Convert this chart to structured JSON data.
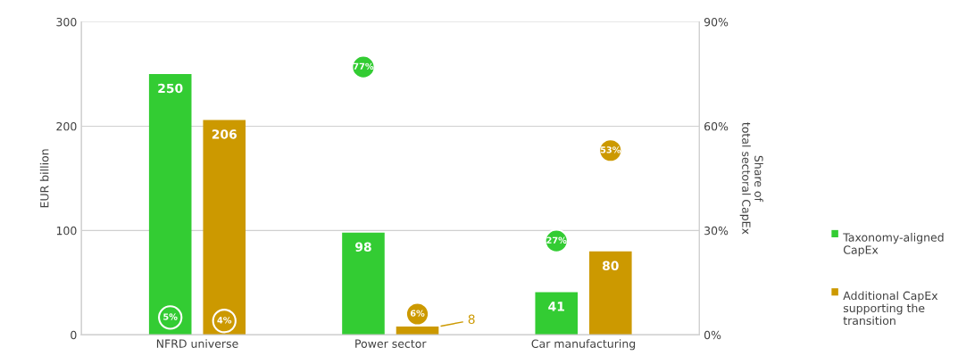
{
  "chart_data": {
    "type": "bar",
    "categories": [
      "NFRD universe",
      "Power sector",
      "Car manufacturing"
    ],
    "ylabel": "EUR billion",
    "y2label": "Share of\ntotal sectoral CapEx",
    "ylim": [
      0,
      300
    ],
    "yticks": [
      0,
      100,
      200,
      300
    ],
    "y2lim": [
      0,
      90
    ],
    "y2ticks": [
      {
        "value": 0,
        "label": "0%"
      },
      {
        "value": 30,
        "label": "30%"
      },
      {
        "value": 60,
        "label": "60%"
      },
      {
        "value": 90,
        "label": "90%"
      }
    ],
    "grid": "y",
    "legend": "right",
    "data_labels": true,
    "series": [
      {
        "name": "Taxonomy-aligned CapEx",
        "color": "#33cc33",
        "values": [
          250,
          98,
          41
        ]
      },
      {
        "name": "Additional CapEx supporting the transition",
        "color": "#cc9900",
        "values": [
          206,
          8,
          80
        ]
      },
      {
        "type": "scatter",
        "axis": "y2",
        "color": "#33cc33",
        "values": [
          5,
          77,
          27
        ],
        "value_labels": [
          "5%",
          "77%",
          "27%"
        ]
      },
      {
        "type": "scatter",
        "axis": "y2",
        "color": "#cc9900",
        "values": [
          4,
          6,
          53
        ],
        "value_labels": [
          "4%",
          "6%",
          "53%"
        ]
      }
    ]
  }
}
